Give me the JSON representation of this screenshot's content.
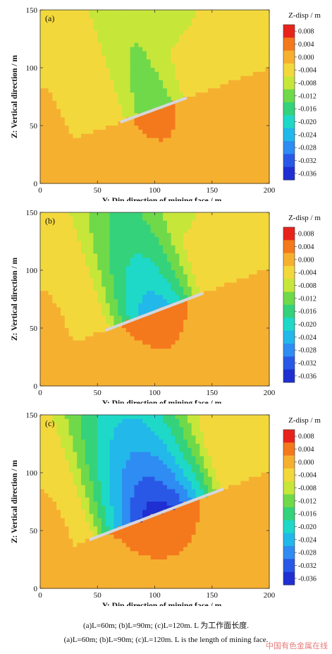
{
  "chart_data": [
    {
      "type": "contour",
      "panel_label": "(a)",
      "xlabel": "Y: Dip direction of mining face / m",
      "ylabel": "Z: Vertical direction / m",
      "xlim": [
        0,
        200
      ],
      "ylim": [
        0,
        150
      ],
      "xticks": [
        0,
        50,
        100,
        150,
        200
      ],
      "yticks": [
        0,
        50,
        100,
        150
      ],
      "colorbar_title": "Z-disp / m",
      "colorbar_ticks": [
        0.008,
        0.004,
        0.0,
        -0.004,
        -0.008,
        -0.012,
        -0.016,
        -0.02,
        -0.024,
        -0.028,
        -0.032,
        -0.036
      ],
      "colorbar_tick_labels": [
        "0.008",
        "0.004",
        "0.000",
        "-0.004",
        "-0.008",
        "-0.012",
        "-0.016",
        "-0.020",
        "-0.024",
        "-0.028",
        "-0.032",
        "-0.036"
      ],
      "mining_face": {
        "y_start": 70,
        "z_start": 53,
        "y_end": 128,
        "z_end": 74
      },
      "estimated_fields": {
        "above_face_min": -0.008,
        "below_face_max": 0.008
      }
    },
    {
      "type": "contour",
      "panel_label": "(b)",
      "xlabel": "Y: Dip direction of mining face / m",
      "ylabel": "Z: Vertical direction / m",
      "xlim": [
        0,
        200
      ],
      "ylim": [
        0,
        150
      ],
      "xticks": [
        0,
        50,
        100,
        150,
        200
      ],
      "yticks": [
        0,
        50,
        100,
        150
      ],
      "colorbar_title": "Z-disp / m",
      "colorbar_ticks": [
        0.008,
        0.004,
        0.0,
        -0.004,
        -0.008,
        -0.012,
        -0.016,
        -0.02,
        -0.024,
        -0.028,
        -0.032,
        -0.036
      ],
      "colorbar_tick_labels": [
        "0.008",
        "0.004",
        "0.000",
        "-0.004",
        "-0.008",
        "-0.012",
        "-0.016",
        "-0.020",
        "-0.024",
        "-0.028",
        "-0.032",
        "-0.036"
      ],
      "mining_face": {
        "y_start": 57,
        "z_start": 48,
        "y_end": 142,
        "z_end": 80
      },
      "estimated_fields": {
        "above_face_min": -0.02,
        "below_face_max": 0.008
      }
    },
    {
      "type": "contour",
      "panel_label": "(c)",
      "xlabel": "Y: Dip direction of mining face / m",
      "ylabel": "Z: Vertical direction / m",
      "xlim": [
        0,
        200
      ],
      "ylim": [
        0,
        150
      ],
      "xticks": [
        0,
        50,
        100,
        150,
        200
      ],
      "yticks": [
        0,
        50,
        100,
        150
      ],
      "colorbar_title": "Z-disp / m",
      "colorbar_ticks": [
        0.008,
        0.004,
        0.0,
        -0.004,
        -0.008,
        -0.012,
        -0.016,
        -0.02,
        -0.024,
        -0.028,
        -0.032,
        -0.036
      ],
      "colorbar_tick_labels": [
        "0.008",
        "0.004",
        "0.000",
        "-0.004",
        "-0.008",
        "-0.012",
        "-0.016",
        "-0.020",
        "-0.024",
        "-0.028",
        "-0.032",
        "-0.036"
      ],
      "mining_face": {
        "y_start": 43,
        "z_start": 42,
        "y_end": 160,
        "z_end": 86
      },
      "estimated_fields": {
        "above_face_min": -0.032,
        "below_face_max": 0.008
      }
    }
  ],
  "colorscale": {
    "stops": [
      {
        "value": 0.008,
        "color": "#e8231c"
      },
      {
        "value": 0.004,
        "color": "#f4791c"
      },
      {
        "value": 0.0,
        "color": "#f6b030"
      },
      {
        "value": -0.004,
        "color": "#f3d83c"
      },
      {
        "value": -0.008,
        "color": "#c7e63a"
      },
      {
        "value": -0.012,
        "color": "#6fd94a"
      },
      {
        "value": -0.016,
        "color": "#34d27a"
      },
      {
        "value": -0.02,
        "color": "#1ed9c8"
      },
      {
        "value": -0.024,
        "color": "#22b8ea"
      },
      {
        "value": -0.028,
        "color": "#2e8cf2"
      },
      {
        "value": -0.032,
        "color": "#2a58e6"
      },
      {
        "value": -0.036,
        "color": "#1f2fd2"
      }
    ]
  },
  "captions": {
    "chinese": "(a)L=60m; (b)L=90m; (c)L=120m. L 为工作面长度.",
    "english": "(a)L=60m; (b)L=90m; (c)L=120m. L is the length of mining face."
  },
  "watermark": "中国有色金属在线"
}
